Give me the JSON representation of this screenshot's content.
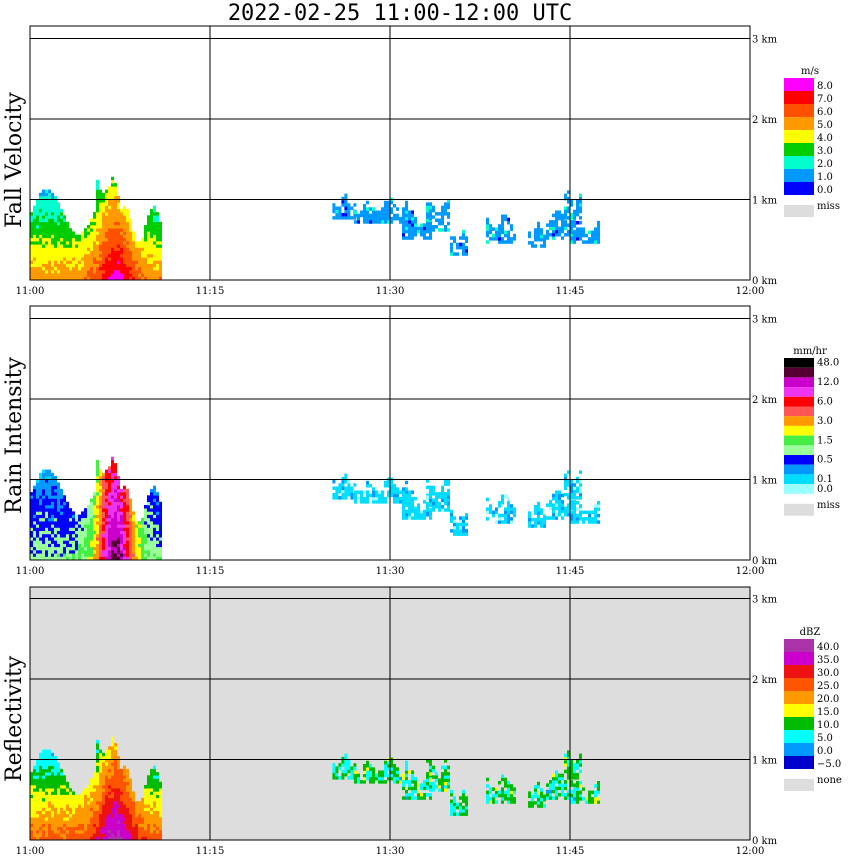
{
  "title": "2022-02-25   11:00-12:00 UTC",
  "panels": [
    {
      "label": "Fall Velocity",
      "unit": "m/s",
      "scale_labels": [
        "8.0",
        "7.0",
        "6.0",
        "5.0",
        "4.0",
        "3.0",
        "2.0",
        "1.0",
        "0.0"
      ],
      "scale_colors": [
        "#ff00ff",
        "#ff0000",
        "#ff5000",
        "#ff9900",
        "#ffff00",
        "#00cc00",
        "#00ffcc",
        "#0099ff",
        "#0000ff"
      ],
      "missing_label": "miss",
      "missing_color": "#dddddd",
      "background": "#ffffff"
    },
    {
      "label": "Rain Intensity",
      "unit": "mm/hr",
      "scale_labels": [
        "48.0",
        "",
        "12.0",
        "",
        "6.0",
        "",
        "3.0",
        "",
        "1.5",
        "",
        "0.5",
        "",
        "0.1",
        "0.0"
      ],
      "scale_colors": [
        "#000000",
        "#550033",
        "#cc00cc",
        "#ee33ee",
        "#ff0000",
        "#ff5555",
        "#ff9900",
        "#ffff00",
        "#44ee44",
        "#99ff99",
        "#0000ff",
        "#0099ff",
        "#00ddff",
        "#99ffff"
      ],
      "missing_label": "miss",
      "missing_color": "#dddddd",
      "background": "#ffffff"
    },
    {
      "label": "Reflectivity",
      "unit": "dBZ",
      "scale_labels": [
        "40.0",
        "35.0",
        "30.0",
        "25.0",
        "20.0",
        "15.0",
        "10.0",
        "5.0",
        "0.0",
        "−5.0"
      ],
      "scale_colors": [
        "#aa33aa",
        "#cc00cc",
        "#ee1111",
        "#ff5500",
        "#ff9900",
        "#ffff00",
        "#00bb00",
        "#00ffff",
        "#0099ff",
        "#0000cc"
      ],
      "missing_label": "none",
      "missing_color": "#dddddd",
      "background": "#dddddd"
    }
  ],
  "x_ticks": [
    "11:00",
    "11:15",
    "11:30",
    "11:45",
    "12:00"
  ],
  "y_ticks": [
    "0 km",
    "1 km",
    "2 km",
    "3 km"
  ],
  "chart_data": {
    "type": "heatmap",
    "title": "2022-02-25   11:00-12:00 UTC",
    "x_range": [
      "11:00",
      "12:00"
    ],
    "y_range_km": [
      0,
      3.2
    ],
    "grid": true,
    "legend": "right",
    "series": [
      {
        "name": "Fall Velocity",
        "unit": "m/s"
      },
      {
        "name": "Rain Intensity",
        "unit": "mm/hr"
      },
      {
        "name": "Reflectivity",
        "unit": "dBZ"
      }
    ],
    "echo_regions": [
      {
        "time_start_min": 0,
        "time_end_min": 11,
        "height_top_km": 1.25,
        "note": "precipitation near surface, strongest around 11:06-11:08"
      },
      {
        "time_start_min": 25,
        "time_end_min": 48,
        "height_top_km": 1.1,
        "note": "scattered elevated echoes 0.3-1.1 km"
      }
    ]
  }
}
